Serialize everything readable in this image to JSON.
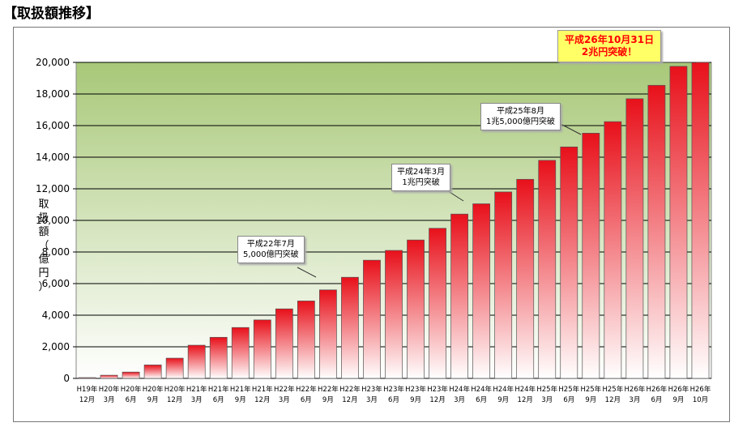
{
  "title": "【取扱額推移】",
  "chart_data": {
    "type": "bar",
    "title": "",
    "ylabel": "取扱額（億円）",
    "ylabel_chars": [
      "取",
      "扱",
      "額",
      "（",
      "億",
      "円",
      "）"
    ],
    "ylim": [
      0,
      20000
    ],
    "yticks": [
      0,
      2000,
      4000,
      6000,
      8000,
      10000,
      12000,
      14000,
      16000,
      18000,
      20000
    ],
    "ytick_labels": [
      "0",
      "2,000",
      "4,000",
      "6,000",
      "8,000",
      "10,000",
      "12,000",
      "14,000",
      "16,000",
      "18,000",
      "20,000"
    ],
    "grid": true,
    "categories": [
      {
        "year": "H19年",
        "month": "12月"
      },
      {
        "year": "H20年",
        "month": "3月"
      },
      {
        "year": "H20年",
        "month": "6月"
      },
      {
        "year": "H20年",
        "month": "9月"
      },
      {
        "year": "H20年",
        "month": "12月"
      },
      {
        "year": "H21年",
        "month": "3月"
      },
      {
        "year": "H21年",
        "month": "6月"
      },
      {
        "year": "H21年",
        "month": "9月"
      },
      {
        "year": "H21年",
        "month": "12月"
      },
      {
        "year": "H22年",
        "month": "3月"
      },
      {
        "year": "H22年",
        "month": "6月"
      },
      {
        "year": "H22年",
        "month": "9月"
      },
      {
        "year": "H22年",
        "month": "12月"
      },
      {
        "year": "H23年",
        "month": "3月"
      },
      {
        "year": "H23年",
        "month": "6月"
      },
      {
        "year": "H23年",
        "month": "9月"
      },
      {
        "year": "H23年",
        "month": "12月"
      },
      {
        "year": "H24年",
        "month": "3月"
      },
      {
        "year": "H24年",
        "month": "6月"
      },
      {
        "year": "H24年",
        "month": "9月"
      },
      {
        "year": "H24年",
        "month": "12月"
      },
      {
        "year": "H25年",
        "month": "3月"
      },
      {
        "year": "H25年",
        "month": "6月"
      },
      {
        "year": "H25年",
        "month": "9月"
      },
      {
        "year": "H25年",
        "month": "12月"
      },
      {
        "year": "H26年",
        "month": "3月"
      },
      {
        "year": "H26年",
        "month": "6月"
      },
      {
        "year": "H26年",
        "month": "9月"
      },
      {
        "year": "H26年",
        "month": "10月"
      }
    ],
    "values": [
      50,
      200,
      400,
      850,
      1280,
      2100,
      2600,
      3220,
      3700,
      4400,
      4900,
      5600,
      6400,
      7480,
      8100,
      8760,
      9500,
      10400,
      11050,
      11800,
      12600,
      13800,
      14650,
      15520,
      16250,
      17700,
      18550,
      19750,
      20000
    ],
    "annotations": [
      {
        "lines": [
          "平成22年7月",
          "5,000億円突破"
        ],
        "highlight": false
      },
      {
        "lines": [
          "平成24年3月",
          "1兆円突破"
        ],
        "highlight": false
      },
      {
        "lines": [
          "平成25年8月",
          "1兆5,000億円突破"
        ],
        "highlight": false
      },
      {
        "lines": [
          "平成26年10月31日",
          "2兆円突破！"
        ],
        "highlight": true
      }
    ],
    "colors": {
      "bar_top": "#e8101a",
      "bar_bottom": "#ffffff",
      "plot_top": "#a8c878",
      "plot_bottom": "#ffffff"
    }
  }
}
